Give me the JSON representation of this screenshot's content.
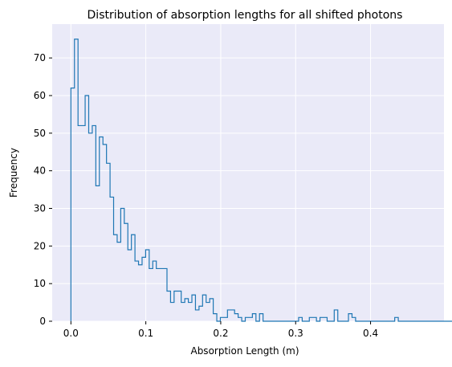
{
  "chart_data": {
    "type": "histogram",
    "title": "Distribution of absorption lengths for all shifted photons",
    "xlabel": "Absorption Length (m)",
    "ylabel": "Frequency",
    "xlim": [
      -0.025,
      0.498
    ],
    "ylim": [
      0,
      79
    ],
    "xticks": [
      0.0,
      0.1,
      0.2,
      0.3,
      0.4
    ],
    "xtick_labels": [
      "0.0",
      "0.1",
      "0.2",
      "0.3",
      "0.4"
    ],
    "yticks": [
      0,
      10,
      20,
      30,
      40,
      50,
      60,
      70
    ],
    "ytick_labels": [
      "0",
      "10",
      "20",
      "30",
      "40",
      "50",
      "60",
      "70"
    ],
    "grid": true,
    "bin_start": 0.0,
    "bin_width": 0.00475,
    "counts": [
      62,
      75,
      52,
      52,
      60,
      50,
      52,
      36,
      49,
      47,
      42,
      33,
      23,
      21,
      30,
      26,
      19,
      23,
      16,
      15,
      17,
      19,
      14,
      16,
      14,
      14,
      14,
      8,
      5,
      8,
      8,
      5,
      6,
      5,
      7,
      3,
      4,
      7,
      5,
      6,
      2,
      0,
      1,
      1,
      3,
      3,
      2,
      1,
      0,
      1,
      1,
      2,
      0,
      2,
      0,
      0,
      0,
      0,
      0,
      0,
      0,
      0,
      0,
      0,
      1,
      0,
      0,
      1,
      1,
      0,
      1,
      1,
      0,
      0,
      3,
      0,
      0,
      0,
      2,
      1,
      0,
      0,
      0,
      0,
      0,
      0,
      0,
      0,
      0,
      0,
      0,
      1,
      0,
      0,
      0,
      0,
      0,
      0,
      0,
      0,
      0,
      0,
      0,
      0,
      0,
      0,
      0,
      0,
      0,
      0,
      0,
      0,
      0,
      0,
      0,
      0,
      0,
      0,
      0,
      0,
      0,
      0,
      0,
      0,
      0,
      0,
      0,
      1,
      0,
      0,
      0,
      0,
      0,
      0,
      0,
      0,
      0,
      0,
      0,
      0,
      0,
      0,
      0,
      0,
      0,
      0,
      0,
      0,
      0,
      0,
      0,
      0,
      0,
      0,
      0,
      0,
      0,
      0,
      0,
      0,
      0,
      0,
      0,
      0,
      0,
      0,
      0,
      0,
      0,
      1
    ],
    "colors": {
      "line": "#1f77b4",
      "plot_background": "#eaeaf8",
      "grid": "#ffffff"
    }
  }
}
